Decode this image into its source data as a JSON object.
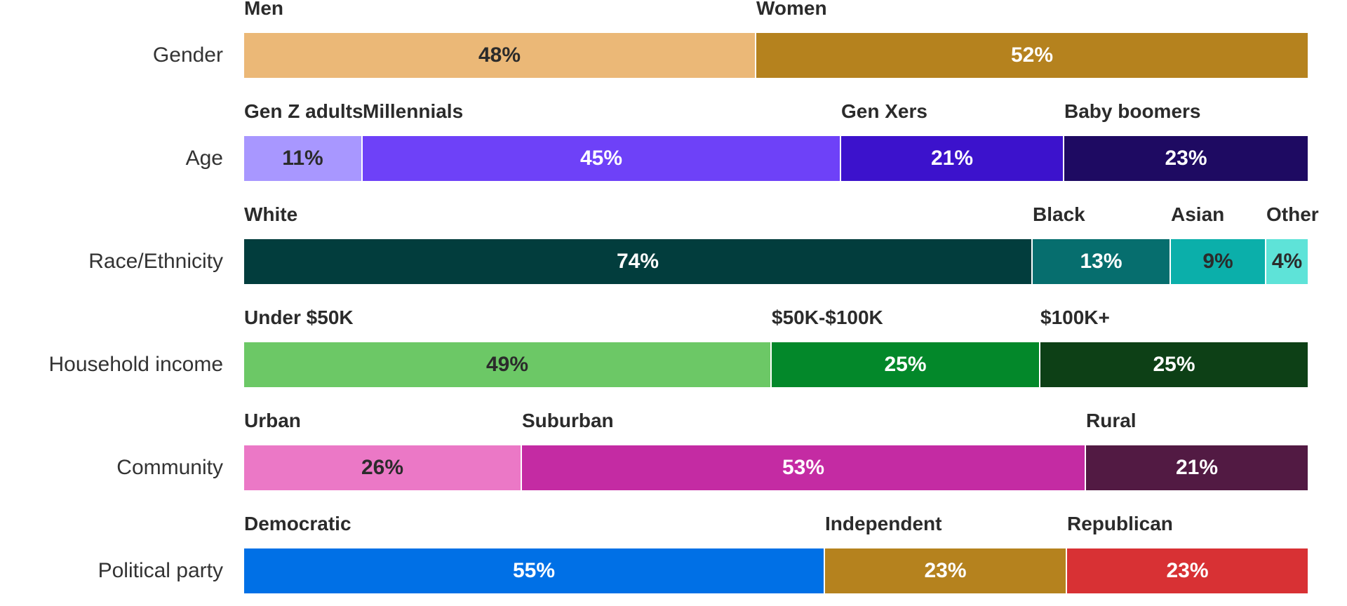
{
  "chart_data": {
    "type": "bar",
    "orientation": "horizontal",
    "stacked": "100%",
    "title": "",
    "xlabel": "",
    "ylabel": "",
    "xlim": [
      0,
      100
    ],
    "grid": false,
    "legend": "none",
    "rows": [
      {
        "label": "Gender",
        "segments": [
          {
            "name": "Men",
            "value": 48,
            "value_label": "48%",
            "color": "#EBB877",
            "text_color": "#2b2b2b"
          },
          {
            "name": "Women",
            "value": 52,
            "value_label": "52%",
            "color": "#B5821E",
            "text_color": "#ffffff"
          }
        ]
      },
      {
        "label": "Age",
        "segments": [
          {
            "name": "Gen Z adults",
            "value": 11,
            "value_label": "11%",
            "color": "#A897FF",
            "text_color": "#2b2b2b"
          },
          {
            "name": "Millennials",
            "value": 45,
            "value_label": "45%",
            "color": "#6E41F8",
            "text_color": "#ffffff"
          },
          {
            "name": "Gen Xers",
            "value": 21,
            "value_label": "21%",
            "color": "#3C12CC",
            "text_color": "#ffffff"
          },
          {
            "name": "Baby boomers",
            "value": 23,
            "value_label": "23%",
            "color": "#1E0A62",
            "text_color": "#ffffff"
          }
        ]
      },
      {
        "label": "Race/Ethnicity",
        "segments": [
          {
            "name": "White",
            "value": 74,
            "value_label": "74%",
            "color": "#023D3D",
            "text_color": "#ffffff"
          },
          {
            "name": "Black",
            "value": 13,
            "value_label": "13%",
            "color": "#066E6E",
            "text_color": "#ffffff"
          },
          {
            "name": "Asian",
            "value": 9,
            "value_label": "9%",
            "color": "#0BAFAA",
            "text_color": "#2b2b2b"
          },
          {
            "name": "Other",
            "value": 4,
            "value_label": "4%",
            "color": "#5EE3D8",
            "text_color": "#2b2b2b"
          }
        ]
      },
      {
        "label": "Household income",
        "segments": [
          {
            "name": "Under $50K",
            "value": 49,
            "value_label": "49%",
            "color": "#6CC866",
            "text_color": "#2b2b2b"
          },
          {
            "name": "$50K-$100K",
            "value": 25,
            "value_label": "25%",
            "color": "#03882A",
            "text_color": "#ffffff"
          },
          {
            "name": "$100K+",
            "value": 25,
            "value_label": "25%",
            "color": "#0D4016",
            "text_color": "#ffffff"
          }
        ]
      },
      {
        "label": "Community",
        "segments": [
          {
            "name": "Urban",
            "value": 26,
            "value_label": "26%",
            "color": "#EB78C6",
            "text_color": "#2b2b2b"
          },
          {
            "name": "Suburban",
            "value": 53,
            "value_label": "53%",
            "color": "#C42BA3",
            "text_color": "#ffffff"
          },
          {
            "name": "Rural",
            "value": 21,
            "value_label": "21%",
            "color": "#521A43",
            "text_color": "#ffffff"
          }
        ]
      },
      {
        "label": "Political party",
        "segments": [
          {
            "name": "Democratic",
            "value": 55,
            "value_label": "55%",
            "color": "#0070E6",
            "text_color": "#ffffff"
          },
          {
            "name": "Independent",
            "value": 23,
            "value_label": "23%",
            "color": "#B5821E",
            "text_color": "#ffffff"
          },
          {
            "name": "Republican",
            "value": 23,
            "value_label": "23%",
            "color": "#D83134",
            "text_color": "#ffffff"
          }
        ]
      }
    ]
  }
}
